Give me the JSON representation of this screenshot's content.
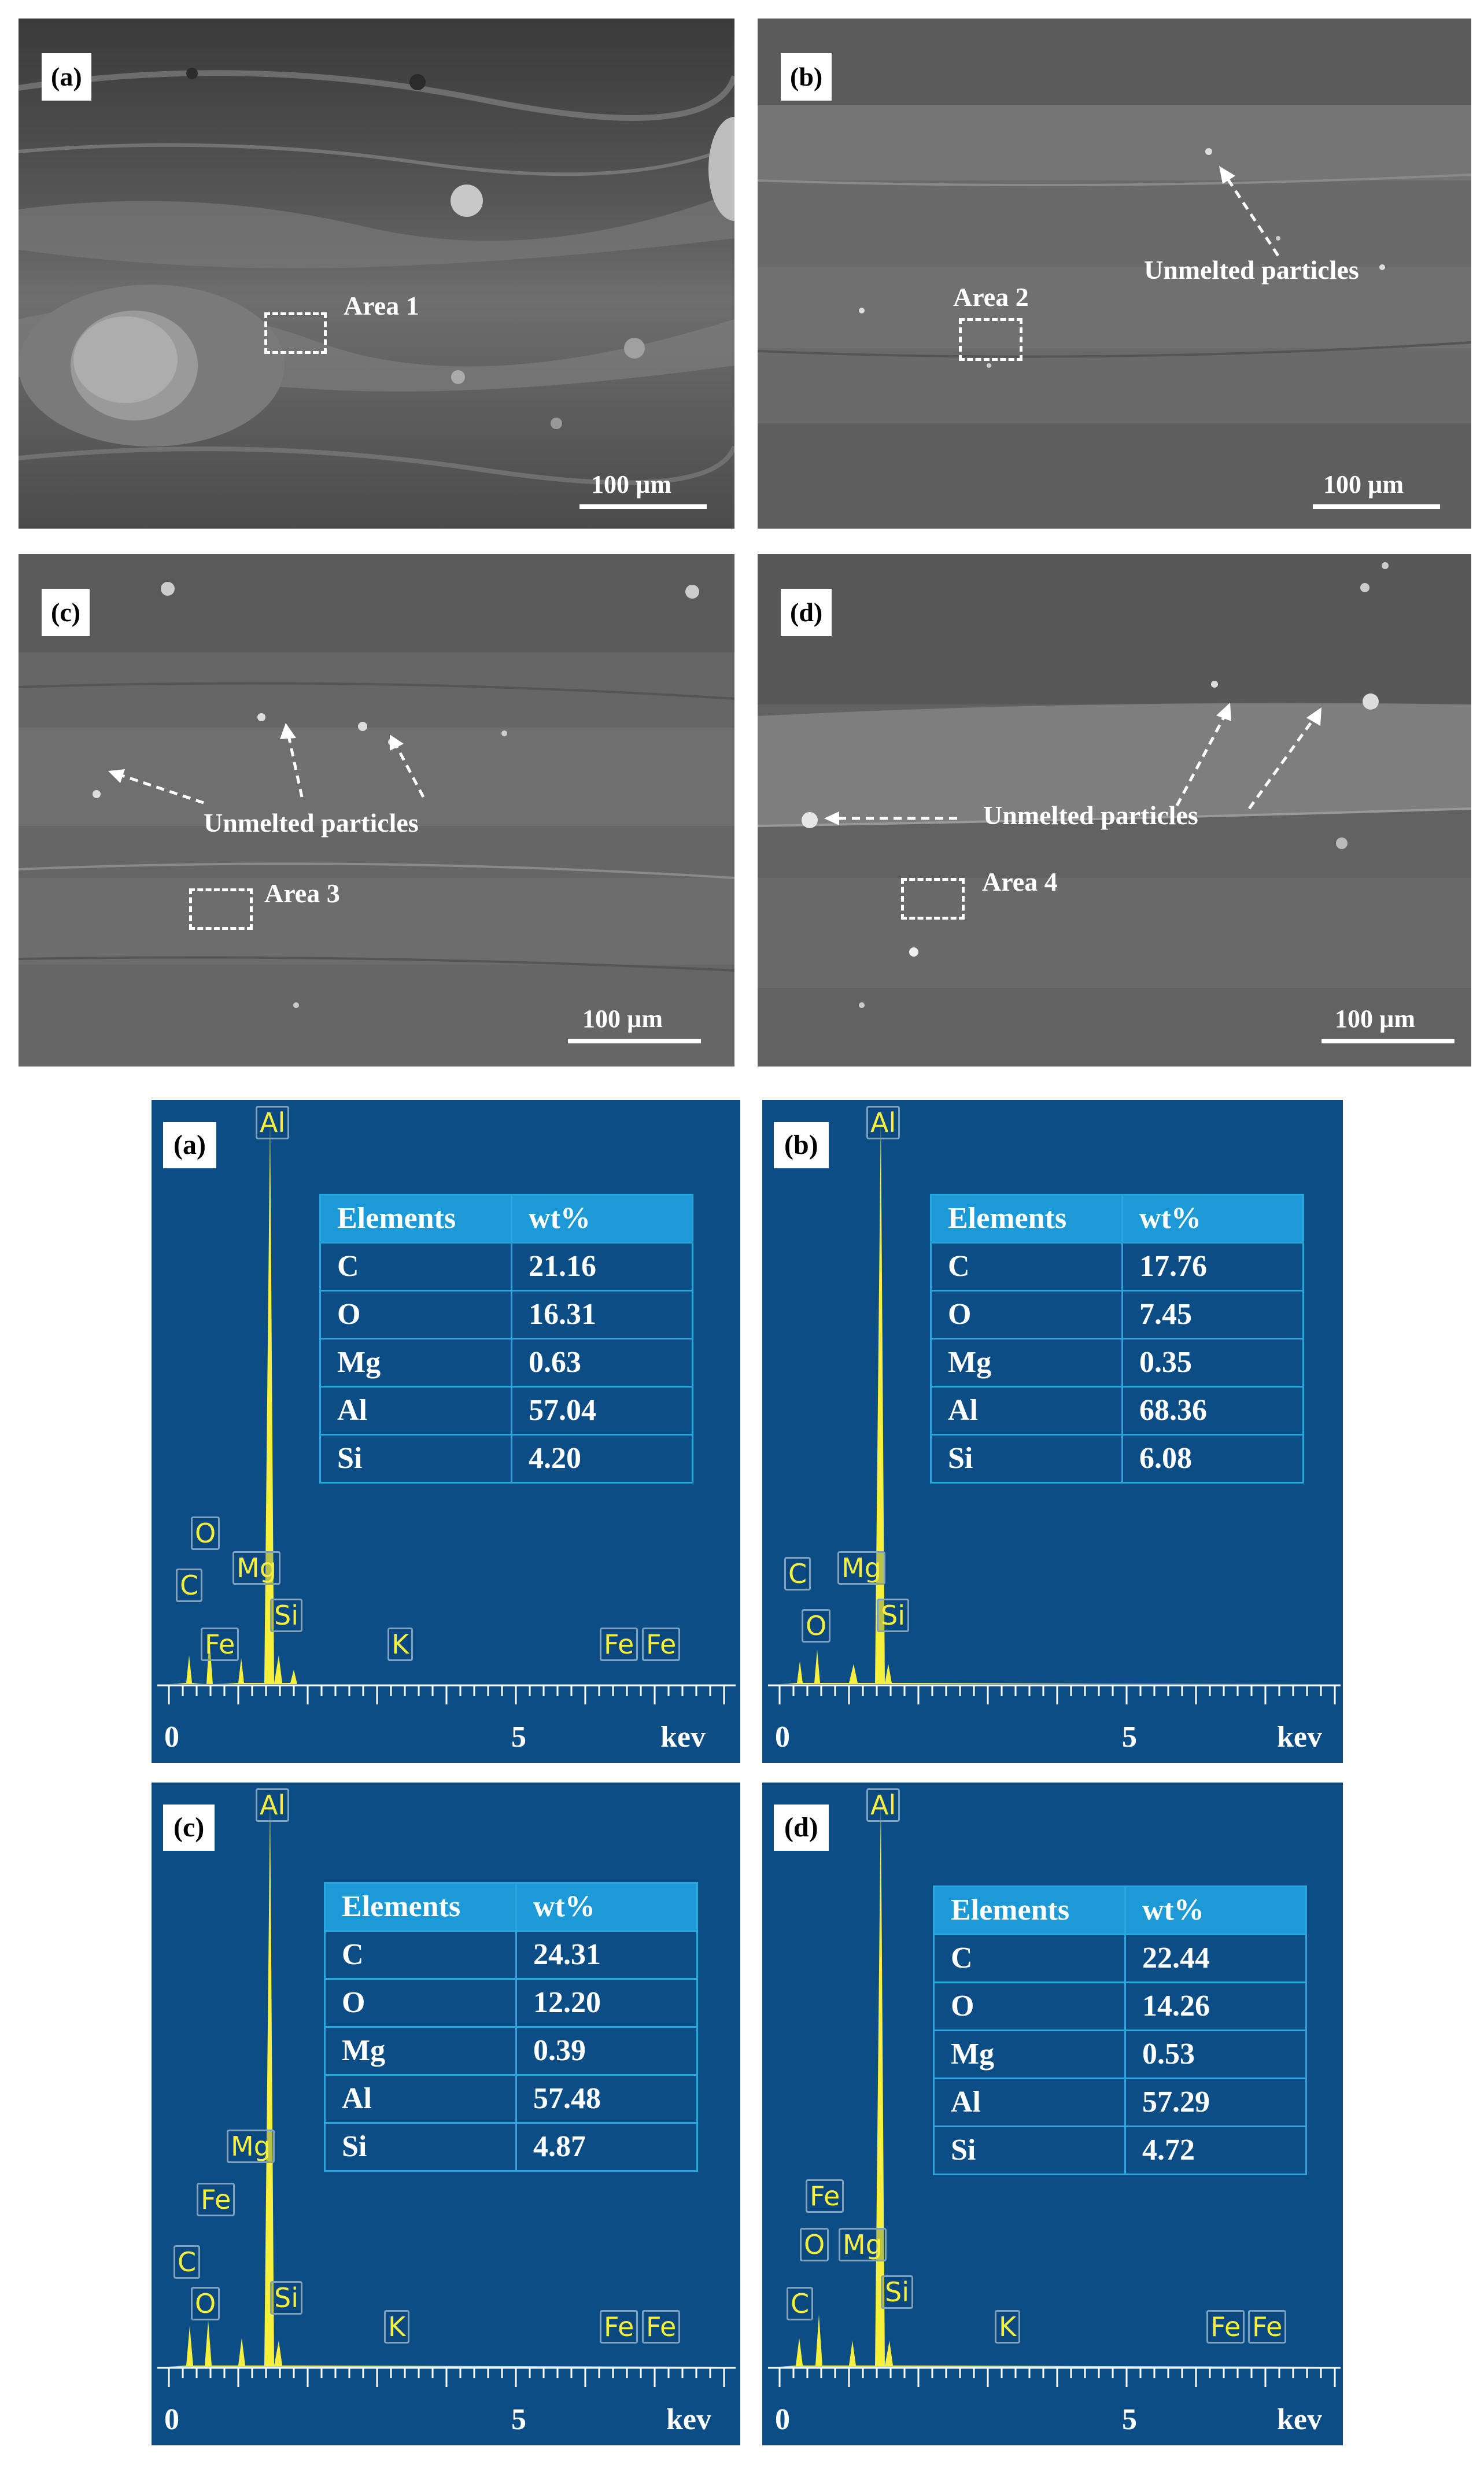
{
  "sem_panels": [
    {
      "label": "(a)",
      "area": "Area 1",
      "scale": "100 µm",
      "notes": []
    },
    {
      "label": "(b)",
      "area": "Area 2",
      "scale": "100 µm",
      "notes": [
        "Unmelted particles"
      ]
    },
    {
      "label": "(c)",
      "area": "Area 3",
      "scale": "100 µm",
      "notes": [
        "Unmelted particles"
      ]
    },
    {
      "label": "(d)",
      "area": "Area 4",
      "scale": "100 µm",
      "notes": [
        "Unmelted particles"
      ]
    }
  ],
  "eds_panels": [
    {
      "label": "(a)",
      "axis": {
        "zero": "0",
        "five": "5",
        "unit": "kev"
      },
      "table": {
        "header": [
          "Elements",
          "wt%"
        ],
        "rows": [
          [
            "C",
            "21.16"
          ],
          [
            "O",
            "16.31"
          ],
          [
            "Mg",
            "0.63"
          ],
          [
            "Al",
            "57.04"
          ],
          [
            "Si",
            "4.20"
          ]
        ]
      },
      "peaks": [
        "Al",
        "O",
        "C",
        "Mg",
        "Fe",
        "Si",
        "K",
        "Fe",
        "Fe"
      ]
    },
    {
      "label": "(b)",
      "axis": {
        "zero": "0",
        "five": "5",
        "unit": "kev"
      },
      "table": {
        "header": [
          "Elements",
          "wt%"
        ],
        "rows": [
          [
            "C",
            "17.76"
          ],
          [
            "O",
            "7.45"
          ],
          [
            "Mg",
            "0.35"
          ],
          [
            "Al",
            "68.36"
          ],
          [
            "Si",
            "6.08"
          ]
        ]
      },
      "peaks": [
        "Al",
        "C",
        "Mg",
        "O",
        "Si"
      ]
    },
    {
      "label": "(c)",
      "axis": {
        "zero": "0",
        "five": "5",
        "unit": "kev"
      },
      "table": {
        "header": [
          "Elements",
          "wt%"
        ],
        "rows": [
          [
            "C",
            "24.31"
          ],
          [
            "O",
            "12.20"
          ],
          [
            "Mg",
            "0.39"
          ],
          [
            "Al",
            "57.48"
          ],
          [
            "Si",
            "4.87"
          ]
        ]
      },
      "peaks": [
        "Al",
        "Mg",
        "Fe",
        "C",
        "O",
        "Si",
        "K",
        "Fe",
        "Fe"
      ]
    },
    {
      "label": "(d)",
      "axis": {
        "zero": "0",
        "five": "5",
        "unit": "kev"
      },
      "table": {
        "header": [
          "Elements",
          "wt%"
        ],
        "rows": [
          [
            "C",
            "22.44"
          ],
          [
            "O",
            "14.26"
          ],
          [
            "Mg",
            "0.53"
          ],
          [
            "Al",
            "57.29"
          ],
          [
            "Si",
            "4.72"
          ]
        ]
      },
      "peaks": [
        "Al",
        "Fe",
        "O",
        "Mg",
        "C",
        "Si",
        "K",
        "Fe",
        "Fe"
      ]
    }
  ],
  "colors": {
    "spectrum_bg": "#0d4d86",
    "peak": "#f6ef3c",
    "table_border": "#29a7dd"
  }
}
